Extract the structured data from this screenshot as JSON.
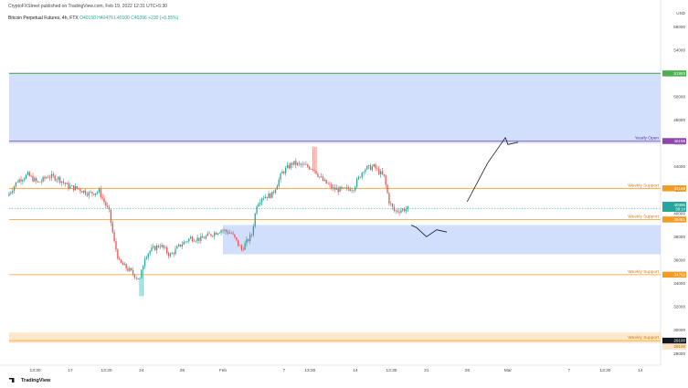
{
  "header": {
    "published": "CryptoFXStreet published on TradingView.com, Feb 19, 2022 12:31 UTC+5:30",
    "symbol": "Bitcoin Perpetual Futures, 4h, FTX",
    "ohlc": "O40150 H40476 L40100 C40396 +230 (+0.55%)"
  },
  "footer": {
    "brand": "TradingView"
  },
  "colors": {
    "bull": "#26a69a",
    "bear": "#ef5350",
    "zone": "#c9d8fb",
    "support_line": "#f59a23",
    "support_zone": "#fde4c2",
    "yearly_line": "#8e44ad",
    "green_line": "#4caf50",
    "price_label": "#26a69a",
    "projection": "#131722"
  },
  "chart_data": {
    "type": "candlestick",
    "title": "Bitcoin Perpetual Futures, 4h, FTX",
    "currency": "USD",
    "ylim": [
      27000,
      57500
    ],
    "y_ticks": [
      56000,
      54000,
      52000,
      50000,
      48000,
      46000,
      44000,
      42000,
      40000,
      38000,
      36000,
      34000,
      32000,
      30000,
      28000
    ],
    "y_tick_labels": [
      "56000",
      "54000",
      "52000",
      "50000",
      "48000",
      "46000",
      "44000",
      "42000",
      "40000",
      "38000",
      "36000",
      "34000",
      "32000",
      "30000",
      "28000"
    ],
    "x_ticks": [
      {
        "label": "13:30",
        "date": "2022-01-13 13:30"
      },
      {
        "label": "17",
        "date": "2022-01-17"
      },
      {
        "label": "13:30",
        "date": "2022-01-20 13:30"
      },
      {
        "label": "24",
        "date": "2022-01-24"
      },
      {
        "label": "28",
        "date": "2022-01-28"
      },
      {
        "label": "Feb",
        "date": "2022-02-01"
      },
      {
        "label": "7",
        "date": "2022-02-07"
      },
      {
        "label": "13:30",
        "date": "2022-02-09 13:30"
      },
      {
        "label": "14",
        "date": "2022-02-14"
      },
      {
        "label": "13:30",
        "date": "2022-02-17 13:30"
      },
      {
        "label": "21",
        "date": "2022-02-21"
      },
      {
        "label": "25",
        "date": "2022-02-25"
      },
      {
        "label": "Mar",
        "date": "2022-03-01"
      },
      {
        "label": "7",
        "date": "2022-03-07"
      },
      {
        "label": "13:30",
        "date": "2022-03-10 13:30"
      },
      {
        "label": "14",
        "date": "2022-03-14"
      }
    ],
    "x_range": [
      "2022-01-11",
      "2022-03-16"
    ],
    "last_date": "2022-02-19 06:30",
    "path": [
      [
        "2022-01-11",
        41500
      ],
      [
        "2022-01-12",
        42800
      ],
      [
        "2022-01-13",
        43300
      ],
      [
        "2022-01-14",
        42600
      ],
      [
        "2022-01-15",
        43200
      ],
      [
        "2022-01-16",
        43000
      ],
      [
        "2022-01-17",
        42300
      ],
      [
        "2022-01-18",
        42100
      ],
      [
        "2022-01-19",
        41700
      ],
      [
        "2022-01-20",
        41900
      ],
      [
        "2022-01-21",
        40100
      ],
      [
        "2022-01-21 12:00",
        37500
      ],
      [
        "2022-01-22",
        35800
      ],
      [
        "2022-01-23",
        35100
      ],
      [
        "2022-01-24",
        34300
      ],
      [
        "2022-01-24 12:00",
        36300
      ],
      [
        "2022-01-25",
        36800
      ],
      [
        "2022-01-26",
        37300
      ],
      [
        "2022-01-27",
        36400
      ],
      [
        "2022-01-28",
        37300
      ],
      [
        "2022-01-29",
        37900
      ],
      [
        "2022-01-30",
        37800
      ],
      [
        "2022-01-31",
        38200
      ],
      [
        "2022-02-01",
        38600
      ],
      [
        "2022-02-02",
        38300
      ],
      [
        "2022-02-03",
        36900
      ],
      [
        "2022-02-04",
        38200
      ],
      [
        "2022-02-04 12:00",
        40800
      ],
      [
        "2022-02-05",
        41400
      ],
      [
        "2022-02-06",
        41600
      ],
      [
        "2022-02-07",
        43500
      ],
      [
        "2022-02-08",
        44300
      ],
      [
        "2022-02-09",
        44100
      ],
      [
        "2022-02-10",
        43900
      ],
      [
        "2022-02-11",
        42800
      ],
      [
        "2022-02-12",
        42100
      ],
      [
        "2022-02-13",
        42000
      ],
      [
        "2022-02-14",
        42200
      ],
      [
        "2022-02-15",
        43800
      ],
      [
        "2022-02-16",
        44000
      ],
      [
        "2022-02-17",
        43100
      ],
      [
        "2022-02-17 12:00",
        41000
      ],
      [
        "2022-02-18",
        40200
      ],
      [
        "2022-02-19 06:30",
        40396
      ]
    ],
    "low_point": [
      "2022-01-24",
      32900
    ],
    "high_point": [
      "2022-02-10",
      45700
    ],
    "zones": [
      {
        "name": "upper-blue-zone",
        "color": "#c9d8fb",
        "from": "2022-01-11",
        "to": "2022-03-16",
        "low": 46000,
        "high": 52100
      },
      {
        "name": "lower-blue-zone",
        "color": "#c9d8fb",
        "from": "2022-02-01",
        "to": "2022-03-16",
        "low": 36500,
        "high": 39000
      },
      {
        "name": "weekly-support-zone",
        "color": "#fde4c2",
        "from": "2022-01-11",
        "to": "2022-03-16",
        "low": 28900,
        "high": 29800
      }
    ],
    "levels": [
      {
        "name": "yearly-open",
        "label": "Yearly Open",
        "value": 46198,
        "tag": "46198",
        "color": "#8e44ad"
      },
      {
        "name": "green-level",
        "label": "",
        "value": 51993,
        "tag": "51993",
        "color": "#4caf50"
      },
      {
        "name": "weekly-support-1",
        "label": "Weekly Support",
        "value": 42148,
        "tag": "42148",
        "color": "#f59a23"
      },
      {
        "name": "weekly-support-2",
        "label": "Weekly Support",
        "value": 39481,
        "tag": "39481",
        "color": "#f59a23"
      },
      {
        "name": "weekly-support-3",
        "label": "Weekly Support",
        "value": 34752,
        "tag": "34752",
        "color": "#f59a23"
      },
      {
        "name": "weekly-support-4",
        "label": "Weekly Support",
        "value": 29100,
        "tag": "29100",
        "color": "#f59a23"
      }
    ],
    "current_price": {
      "value": 40396,
      "tag": "40396",
      "sub": "58:14"
    },
    "projection_up": [
      [
        "2022-02-25",
        41000
      ],
      [
        "2022-02-27",
        44300
      ],
      [
        "2022-02-28 18:00",
        46500
      ],
      [
        "2022-03-01",
        45900
      ],
      [
        "2022-03-02",
        46100
      ]
    ],
    "projection_down": [
      [
        "2022-02-19 12:00",
        39000
      ],
      [
        "2022-02-20",
        38800
      ],
      [
        "2022-02-21",
        38000
      ],
      [
        "2022-02-22",
        38600
      ],
      [
        "2022-02-23",
        38400
      ]
    ]
  }
}
